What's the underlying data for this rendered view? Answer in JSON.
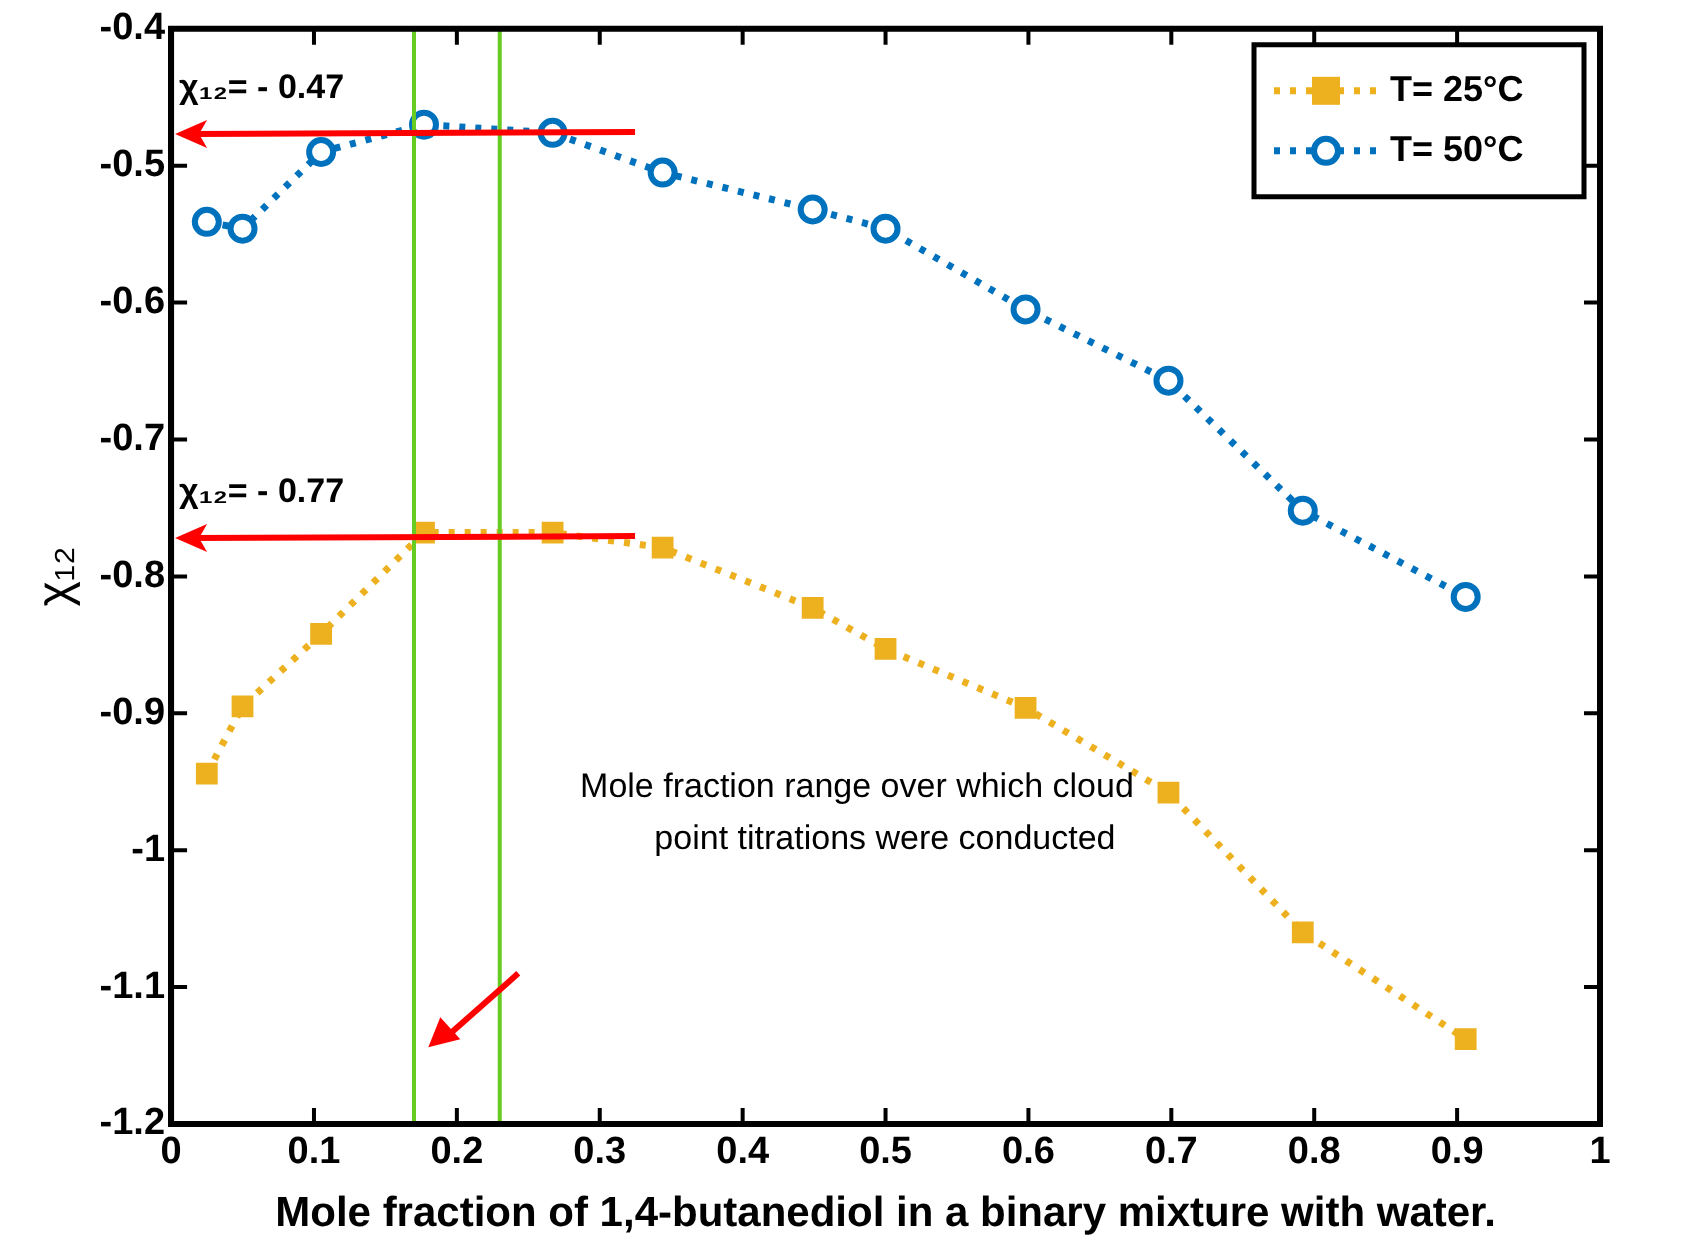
{
  "chart_data": {
    "type": "line",
    "xlabel": "Mole fraction of 1,4-butanediol in a binary mixture with water.",
    "ylabel": "χ₁₂",
    "xlim": [
      0,
      1
    ],
    "xticks": [
      0,
      0.1,
      0.2,
      0.3,
      0.4,
      0.5,
      0.6,
      0.7,
      0.8,
      0.9,
      1
    ],
    "ylim": [
      -1.2,
      -0.4
    ],
    "yticks": [
      -1.2,
      -1.1,
      -1,
      -0.9,
      -0.8,
      -0.7,
      -0.6,
      -0.5,
      -0.4
    ],
    "grid": false,
    "legend": "top right",
    "line_style": "dotted",
    "x": [
      0.025,
      0.05,
      0.105,
      0.177,
      0.267,
      0.344,
      0.449,
      0.5,
      0.598,
      0.698,
      0.792,
      0.906
    ],
    "series": [
      {
        "name": "T= 25°C",
        "color": "#edb120",
        "marker": "square",
        "values": [
          -0.944,
          -0.895,
          -0.842,
          -0.768,
          -0.768,
          -0.779,
          -0.823,
          -0.853,
          -0.896,
          -0.958,
          -1.06,
          -1.138
        ]
      },
      {
        "name": "T= 50°C",
        "color": "#0072bd",
        "marker": "circle",
        "values": [
          -0.541,
          -0.546,
          -0.49,
          -0.47,
          -0.476,
          -0.505,
          -0.532,
          -0.546,
          -0.605,
          -0.657,
          -0.752,
          -0.815
        ]
      }
    ],
    "ref_lines": [
      {
        "axis": "x",
        "value": 0.17,
        "color": "#66cc22"
      },
      {
        "axis": "x",
        "value": 0.23,
        "color": "#66cc22"
      }
    ],
    "annotations": [
      "χ₁₂= - 0.47",
      "χ₁₂= - 0.77",
      "Mole fraction range over which cloud\npoint titrations were conducted"
    ]
  }
}
